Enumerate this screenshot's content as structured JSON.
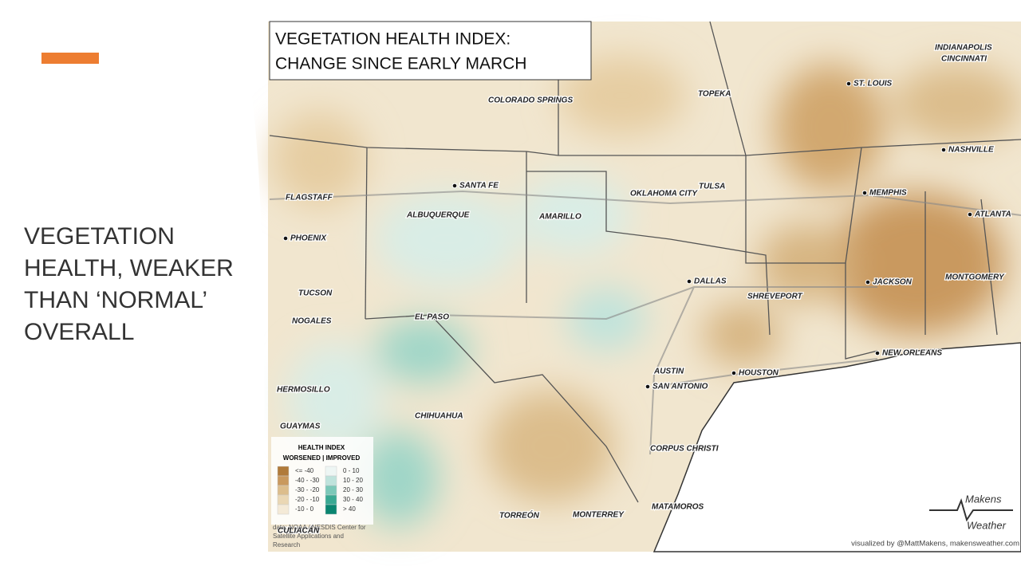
{
  "slide": {
    "title_lines": [
      "VEGETATION",
      "HEALTH, WEAKER",
      "THAN ‘NORMAL’",
      "OVERALL"
    ]
  },
  "map": {
    "title_lines": [
      "VEGETATION HEALTH INDEX:",
      "CHANGE SINCE EARLY MARCH"
    ],
    "places": [
      "INDIANAPOLIS",
      "CINCINNATI",
      "ST. LOUIS",
      "TOPEKA",
      "COLORADO SPRINGS",
      "NASHVILLE",
      "SANTA FE",
      "OKLAHOMA CITY",
      "TULSA",
      "MEMPHIS",
      "FLAGSTAFF",
      "ALBUQUERQUE",
      "AMARILLO",
      "ATLANTA",
      "PHOENIX",
      "MONTGOMERY",
      "DALLAS",
      "JACKSON",
      "TUCSON",
      "SHREVEPORT",
      "NOGALES",
      "EL PASO",
      "NEW ORLEANS",
      "AUSTIN",
      "HOUSTON",
      "SAN ANTONIO",
      "HERMOSILLO",
      "CHIHUAHUA",
      "GUAYMAS",
      "CORPUS CHRISTI",
      "MATAMOROS",
      "TORREÓN",
      "MONTERREY",
      "CULIACÁN"
    ],
    "legend": {
      "title": "HEALTH INDEX",
      "subtitle": "WORSENED | IMPROVED",
      "worsened": [
        {
          "label": "<= -40",
          "color": "#b07a3a"
        },
        {
          "label": "-40 - -30",
          "color": "#c9995e"
        },
        {
          "label": "-30 - -20",
          "color": "#dcbd8c"
        },
        {
          "label": "-20 - -10",
          "color": "#ead7b4"
        },
        {
          "label": "-10 - 0",
          "color": "#f4ead7"
        }
      ],
      "improved": [
        {
          "label": "0 - 10",
          "color": "#eef6f4"
        },
        {
          "label": "10 - 20",
          "color": "#bfe3dc"
        },
        {
          "label": "20 - 30",
          "color": "#7cc8b8"
        },
        {
          "label": "30 - 40",
          "color": "#3aa892"
        },
        {
          "label": "> 40",
          "color": "#0b8570"
        }
      ]
    },
    "source_lines": [
      "data: NOAA / NESDIS Center for",
      "Satellite Applications and",
      "Research"
    ],
    "logo": [
      "Makens",
      "Weather"
    ],
    "credit": "visualized by @MattMakens, makensweather.com"
  }
}
